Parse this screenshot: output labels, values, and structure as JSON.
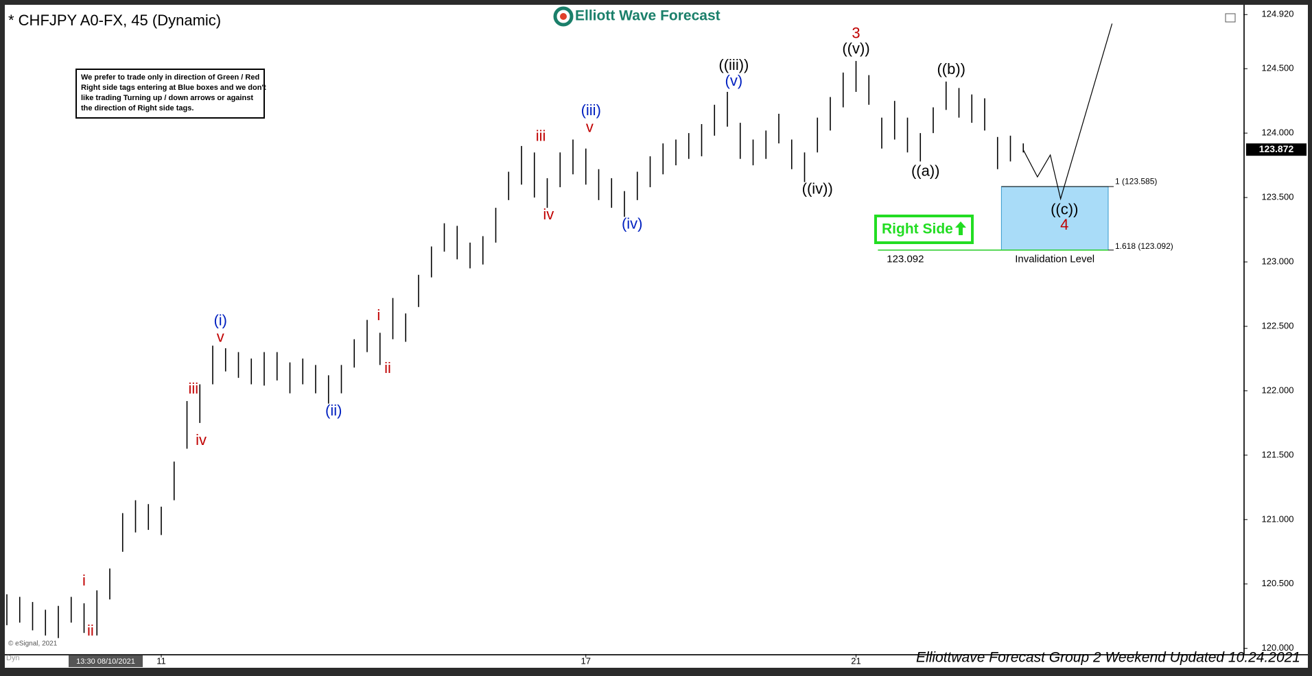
{
  "chart_data": {
    "type": "ohlc",
    "title": "* CHFJPY A0-FX, 45 (Dynamic)",
    "logo": "Elliott Wave Forecast",
    "note": [
      "We prefer to trade only in direction of Green / Red",
      "Right side tags entering at Blue boxes and we don't",
      "like trading Turning up / down arrows or against",
      "the direction of Right side tags."
    ],
    "footer": "Elliottwave Forecast Group 2 Weekend Updated 10.24.2021",
    "copyright": "© eSignal, 2021",
    "start_time": "13:30 08/10/2021",
    "mode": "Dyn",
    "color": "#000000",
    "x": [
      0,
      1,
      2,
      3,
      4,
      5,
      6,
      7,
      8,
      9,
      10,
      11,
      12,
      13,
      14,
      15,
      16,
      17,
      18,
      19,
      20,
      21,
      22,
      23,
      24,
      25,
      26,
      27,
      28,
      29,
      30,
      31,
      32,
      33,
      34,
      35,
      36,
      37,
      38,
      39,
      40,
      41,
      42,
      43,
      44,
      45,
      46,
      47,
      48,
      49,
      50,
      51,
      52,
      53,
      54,
      55,
      56,
      57,
      58,
      59,
      60,
      61,
      62,
      63,
      64,
      65,
      66,
      67,
      68,
      69,
      70,
      71,
      72,
      73,
      74,
      75,
      76,
      77,
      78,
      79
    ],
    "high": [
      120.42,
      120.4,
      120.36,
      120.3,
      120.33,
      120.4,
      120.35,
      120.45,
      120.62,
      121.05,
      121.15,
      121.12,
      121.1,
      121.45,
      121.92,
      122.05,
      122.35,
      122.33,
      122.3,
      122.25,
      122.3,
      122.3,
      122.22,
      122.25,
      122.2,
      122.12,
      122.2,
      122.4,
      122.55,
      122.45,
      122.72,
      122.6,
      122.9,
      123.12,
      123.3,
      123.28,
      123.15,
      123.2,
      123.42,
      123.7,
      123.9,
      123.85,
      123.65,
      123.85,
      123.95,
      123.88,
      123.72,
      123.65,
      123.55,
      123.7,
      123.82,
      123.92,
      123.95,
      124.0,
      124.07,
      124.22,
      124.32,
      124.08,
      123.95,
      124.02,
      124.15,
      123.95,
      123.85,
      124.12,
      124.28,
      124.47,
      124.56,
      124.45,
      124.12,
      124.25,
      124.12,
      124.0,
      124.2,
      124.4,
      124.35,
      124.3,
      124.27,
      123.97,
      123.98,
      123.92
    ],
    "low": [
      120.18,
      120.2,
      120.14,
      120.1,
      120.08,
      120.2,
      120.12,
      120.1,
      120.38,
      120.75,
      120.9,
      120.92,
      120.88,
      121.15,
      121.55,
      121.75,
      122.05,
      122.15,
      122.1,
      122.05,
      122.04,
      122.08,
      121.98,
      122.05,
      121.98,
      121.9,
      121.98,
      122.18,
      122.3,
      122.2,
      122.4,
      122.38,
      122.65,
      122.88,
      123.08,
      123.02,
      122.95,
      122.98,
      123.15,
      123.48,
      123.6,
      123.5,
      123.42,
      123.58,
      123.68,
      123.6,
      123.48,
      123.42,
      123.35,
      123.48,
      123.58,
      123.68,
      123.75,
      123.8,
      123.82,
      123.98,
      124.05,
      123.8,
      123.75,
      123.8,
      123.92,
      123.72,
      123.62,
      123.85,
      124.02,
      124.2,
      124.32,
      124.22,
      123.88,
      123.95,
      123.85,
      123.78,
      124.0,
      124.18,
      124.12,
      124.08,
      124.02,
      123.72,
      123.78,
      123.85
    ],
    "xlim": [
      0,
      96
    ],
    "xticks": [
      {
        "value": 12,
        "label": "11"
      },
      {
        "value": 45,
        "label": "17"
      },
      {
        "value": 66,
        "label": "21"
      }
    ],
    "ylim": [
      119.94,
      124.98
    ],
    "yticks": [
      {
        "value": 120,
        "label": "120.000"
      },
      {
        "value": 120.5,
        "label": "120.500"
      },
      {
        "value": 121,
        "label": "121.000"
      },
      {
        "value": 121.5,
        "label": "121.500"
      },
      {
        "value": 122,
        "label": "122.000"
      },
      {
        "value": 122.5,
        "label": "122.500"
      },
      {
        "value": 123,
        "label": "123.000"
      },
      {
        "value": 123.5,
        "label": "123.500"
      },
      {
        "value": 124,
        "label": "124.000"
      },
      {
        "value": 124.5,
        "label": "124.500"
      },
      {
        "value": 124.92,
        "label": "124.920"
      }
    ],
    "last_price": {
      "value": 123.872,
      "label": "123.872"
    },
    "projection": {
      "x": [
        79,
        80.1,
        81.1,
        81.9,
        85.9
      ],
      "y": [
        123.87,
        123.66,
        123.83,
        123.49,
        124.85
      ]
    },
    "blue_box": {
      "x": [
        77.3,
        85.6
      ],
      "top": 123.585,
      "bottom": 123.092,
      "top_label": "1 (123.585)",
      "bottom_label": "1.618 (123.092)",
      "caption": "Invalidation Level"
    },
    "invalidation": {
      "value": 123.092,
      "label": "123.092",
      "x": [
        67.7,
        85.6
      ]
    },
    "right_side": "Right Side",
    "annotations": [
      {
        "text": "i",
        "x": 6.0,
        "y": 120.52,
        "color": "#c00000"
      },
      {
        "text": "ii",
        "x": 6.5,
        "y": 120.13,
        "color": "#c00000"
      },
      {
        "text": "iii",
        "x": 14.5,
        "y": 122.01,
        "color": "#c00000"
      },
      {
        "text": "iv",
        "x": 15.1,
        "y": 121.61,
        "color": "#c00000"
      },
      {
        "text": "(i)",
        "x": 16.6,
        "y": 122.54,
        "color": "#0020c0"
      },
      {
        "text": "v",
        "x": 16.6,
        "y": 122.41,
        "color": "#c00000"
      },
      {
        "text": "(ii)",
        "x": 25.4,
        "y": 121.84,
        "color": "#0020c0"
      },
      {
        "text": "i",
        "x": 28.9,
        "y": 122.58,
        "color": "#c00000"
      },
      {
        "text": "ii",
        "x": 29.6,
        "y": 122.17,
        "color": "#c00000"
      },
      {
        "text": "iii",
        "x": 41.5,
        "y": 123.97,
        "color": "#c00000"
      },
      {
        "text": "iv",
        "x": 42.1,
        "y": 123.36,
        "color": "#c00000"
      },
      {
        "text": "(iii)",
        "x": 45.4,
        "y": 124.17,
        "color": "#0020c0"
      },
      {
        "text": "v",
        "x": 45.3,
        "y": 124.04,
        "color": "#c00000"
      },
      {
        "text": "(iv)",
        "x": 48.6,
        "y": 123.29,
        "color": "#0020c0"
      },
      {
        "text": "(v)",
        "x": 56.5,
        "y": 124.4,
        "color": "#0020c0"
      },
      {
        "text": "((iii))",
        "x": 56.5,
        "y": 124.52,
        "color": "#000000"
      },
      {
        "text": "((iv))",
        "x": 63.0,
        "y": 123.56,
        "color": "#000000"
      },
      {
        "text": "3",
        "x": 66.0,
        "y": 124.77,
        "color": "#c00000"
      },
      {
        "text": "((v))",
        "x": 66.0,
        "y": 124.65,
        "color": "#000000"
      },
      {
        "text": "((b))",
        "x": 73.4,
        "y": 124.49,
        "color": "#000000"
      },
      {
        "text": "((a))",
        "x": 71.4,
        "y": 123.7,
        "color": "#000000"
      },
      {
        "text": "((c))",
        "x": 82.2,
        "y": 123.4,
        "color": "#000000"
      },
      {
        "text": "4",
        "x": 82.2,
        "y": 123.28,
        "color": "#c00000"
      }
    ]
  }
}
